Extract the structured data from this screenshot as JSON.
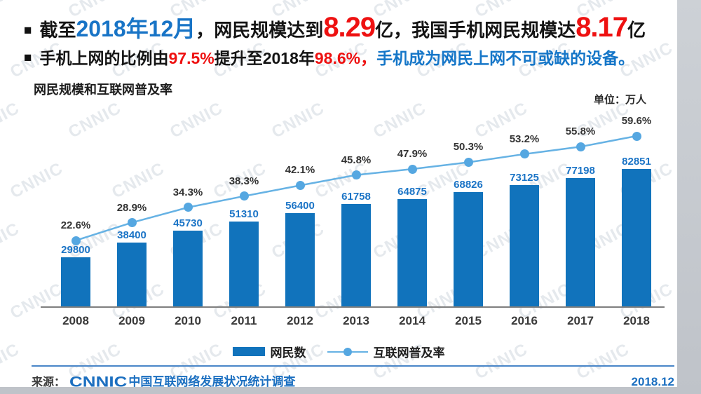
{
  "headline": {
    "bullet": "■",
    "line1": [
      {
        "t": "截至",
        "s": "black"
      },
      {
        "t": "2018年12月",
        "s": "blue-lg"
      },
      {
        "t": "，网民规模达到",
        "s": "black"
      },
      {
        "t": "8.29",
        "s": "red-xl"
      },
      {
        "t": "亿，我国手机网民规模达",
        "s": "black"
      },
      {
        "t": "8.17",
        "s": "red-xl"
      },
      {
        "t": "亿",
        "s": "black"
      }
    ],
    "line2": [
      {
        "t": "手机上网的比例由",
        "s": "black2"
      },
      {
        "t": "97.5%",
        "s": "red"
      },
      {
        "t": "提升至2018年",
        "s": "black2"
      },
      {
        "t": "98.6%，",
        "s": "red"
      },
      {
        "t": "手机成为网民上网不可或缺的设备。",
        "s": "blue"
      }
    ]
  },
  "chart_data": {
    "type": "bar",
    "title": "网民规模和互联网普及率",
    "unit_label": "单位：万人",
    "categories": [
      "2008",
      "2009",
      "2010",
      "2011",
      "2012",
      "2013",
      "2014",
      "2015",
      "2016",
      "2017",
      "2018"
    ],
    "series": [
      {
        "name": "网民数",
        "kind": "bar",
        "unit": "万人",
        "values": [
          29800,
          38400,
          45730,
          51310,
          56400,
          61758,
          64875,
          68826,
          73125,
          77198,
          82851
        ]
      },
      {
        "name": "互联网普及率",
        "kind": "line",
        "unit": "%",
        "values": [
          22.6,
          28.9,
          34.3,
          38.3,
          42.1,
          45.8,
          47.9,
          50.3,
          53.2,
          55.8,
          59.6
        ]
      }
    ],
    "value_labels_shown": true,
    "grid": false,
    "legend_position": "bottom",
    "xlabel": "",
    "ylabel": ""
  },
  "colors": {
    "bar": "#1173bc",
    "bar_value_label": "#1b74c6",
    "line": "#66b2e4",
    "marker": "#55a7e1",
    "headline_blue": "#1874c6",
    "headline_red": "#ee1111",
    "footer_blue": "#1b6fc0"
  },
  "watermark_text": "CNNIC",
  "footer": {
    "source_prefix": "来源：",
    "logo": "CNNIC",
    "source_text": "中国互联网络发展状况统计调查",
    "date": "2018.12"
  }
}
